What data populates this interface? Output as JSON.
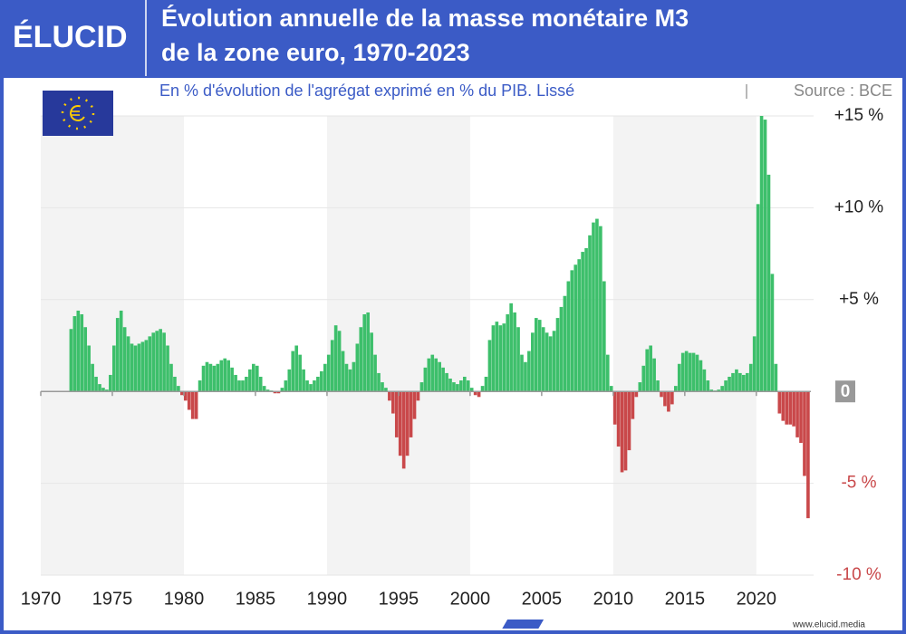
{
  "chart_data": {
    "type": "bar",
    "brand": "ÉLUCID",
    "title": [
      "Évolution annuelle de la masse monétaire M3",
      "de la zone euro, 1970-2023"
    ],
    "subtitle": "En % d'évolution de l'agrégat exprimé en % du PIB. Lissé",
    "source": "Source : BCE",
    "footer": "www.elucid.media",
    "positive_color": "#3dbf6b",
    "negative_color": "#c9484a",
    "xlim": [
      1970,
      2024
    ],
    "xticks": [
      1970,
      1975,
      1980,
      1985,
      1990,
      1995,
      2000,
      2005,
      2010,
      2015,
      2020
    ],
    "ylim": [
      -10,
      15
    ],
    "yticks": [
      {
        "value": -10,
        "label": "-10 %"
      },
      {
        "value": -5,
        "label": "-5 %"
      },
      0,
      {
        "value": 5,
        "label": "+5 %"
      },
      {
        "value": 10,
        "label": "+10 %"
      },
      {
        "value": 15,
        "label": "+15 %"
      }
    ],
    "grid": true,
    "x": [
      1972,
      1972.25,
      1972.5,
      1972.75,
      1973,
      1973.25,
      1973.5,
      1973.75,
      1974,
      1974.25,
      1974.5,
      1974.75,
      1975,
      1975.25,
      1975.5,
      1975.75,
      1976,
      1976.25,
      1976.5,
      1976.75,
      1977,
      1977.25,
      1977.5,
      1977.75,
      1978,
      1978.25,
      1978.5,
      1978.75,
      1979,
      1979.25,
      1979.5,
      1979.75,
      1980,
      1980.25,
      1980.5,
      1980.75,
      1981,
      1981.25,
      1981.5,
      1981.75,
      1982,
      1982.25,
      1982.5,
      1982.75,
      1983,
      1983.25,
      1983.5,
      1983.75,
      1984,
      1984.25,
      1984.5,
      1984.75,
      1985,
      1985.25,
      1985.5,
      1985.75,
      1986,
      1986.25,
      1986.5,
      1986.75,
      1987,
      1987.25,
      1987.5,
      1987.75,
      1988,
      1988.25,
      1988.5,
      1988.75,
      1989,
      1989.25,
      1989.5,
      1989.75,
      1990,
      1990.25,
      1990.5,
      1990.75,
      1991,
      1991.25,
      1991.5,
      1991.75,
      1992,
      1992.25,
      1992.5,
      1992.75,
      1993,
      1993.25,
      1993.5,
      1993.75,
      1994,
      1994.25,
      1994.5,
      1994.75,
      1995,
      1995.25,
      1995.5,
      1995.75,
      1996,
      1996.25,
      1996.5,
      1996.75,
      1997,
      1997.25,
      1997.5,
      1997.75,
      1998,
      1998.25,
      1998.5,
      1998.75,
      1999,
      1999.25,
      1999.5,
      1999.75,
      2000,
      2000.25,
      2000.5,
      2000.75,
      2001,
      2001.25,
      2001.5,
      2001.75,
      2002,
      2002.25,
      2002.5,
      2002.75,
      2003,
      2003.25,
      2003.5,
      2003.75,
      2004,
      2004.25,
      2004.5,
      2004.75,
      2005,
      2005.25,
      2005.5,
      2005.75,
      2006,
      2006.25,
      2006.5,
      2006.75,
      2007,
      2007.25,
      2007.5,
      2007.75,
      2008,
      2008.25,
      2008.5,
      2008.75,
      2009,
      2009.25,
      2009.5,
      2009.75,
      2010,
      2010.25,
      2010.5,
      2010.75,
      2011,
      2011.25,
      2011.5,
      2011.75,
      2012,
      2012.25,
      2012.5,
      2012.75,
      2013,
      2013.25,
      2013.5,
      2013.75,
      2014,
      2014.25,
      2014.5,
      2014.75,
      2015,
      2015.25,
      2015.5,
      2015.75,
      2016,
      2016.25,
      2016.5,
      2016.75,
      2017,
      2017.25,
      2017.5,
      2017.75,
      2018,
      2018.25,
      2018.5,
      2018.75,
      2019,
      2019.25,
      2019.5,
      2019.75,
      2020,
      2020.25,
      2020.5,
      2020.75,
      2021,
      2021.25,
      2021.5,
      2021.75,
      2022,
      2022.25,
      2022.5,
      2022.75,
      2023,
      2023.25,
      2023.5
    ],
    "values": [
      3.4,
      4.1,
      4.4,
      4.2,
      3.5,
      2.5,
      1.5,
      0.8,
      0.4,
      0.2,
      0.1,
      0.9,
      2.5,
      4.0,
      4.4,
      3.5,
      3.0,
      2.6,
      2.5,
      2.6,
      2.7,
      2.8,
      3.0,
      3.2,
      3.3,
      3.4,
      3.2,
      2.5,
      1.5,
      0.8,
      0.3,
      -0.2,
      -0.5,
      -1.0,
      -1.5,
      -1.5,
      0.6,
      1.4,
      1.6,
      1.5,
      1.4,
      1.5,
      1.7,
      1.8,
      1.7,
      1.3,
      0.9,
      0.6,
      0.6,
      0.8,
      1.2,
      1.5,
      1.4,
      0.8,
      0.3,
      0.1,
      0.05,
      -0.1,
      -0.1,
      0.2,
      0.6,
      1.2,
      2.2,
      2.5,
      2.0,
      1.2,
      0.6,
      0.4,
      0.6,
      0.8,
      1.1,
      1.5,
      2.0,
      2.8,
      3.6,
      3.3,
      2.2,
      1.5,
      1.2,
      1.6,
      2.6,
      3.5,
      4.2,
      4.3,
      3.2,
      2.0,
      1.0,
      0.5,
      0.2,
      -0.5,
      -1.2,
      -2.5,
      -3.5,
      -4.2,
      -3.5,
      -2.5,
      -1.5,
      -0.5,
      0.5,
      1.3,
      1.8,
      2.0,
      1.8,
      1.6,
      1.3,
      1.0,
      0.7,
      0.5,
      0.4,
      0.6,
      0.8,
      0.6,
      0.2,
      -0.2,
      -0.3,
      0.3,
      0.8,
      2.8,
      3.6,
      3.8,
      3.6,
      3.7,
      4.2,
      4.8,
      4.3,
      3.5,
      2.0,
      1.6,
      2.2,
      3.2,
      4.0,
      3.9,
      3.5,
      3.2,
      3.0,
      3.3,
      4.0,
      4.6,
      5.2,
      6.0,
      6.6,
      6.9,
      7.2,
      7.6,
      7.8,
      8.5,
      9.2,
      9.4,
      9.0,
      6.0,
      2.0,
      0.3,
      -1.8,
      -3.0,
      -4.4,
      -4.3,
      -3.2,
      -1.5,
      -0.3,
      0.5,
      1.4,
      2.3,
      2.5,
      1.8,
      0.6,
      -0.3,
      -0.8,
      -1.1,
      -0.7,
      0.3,
      1.5,
      2.1,
      2.2,
      2.1,
      2.1,
      2.0,
      1.7,
      1.2,
      0.6,
      0.1,
      0.05,
      0.1,
      0.3,
      0.6,
      0.8,
      1.0,
      1.2,
      1.0,
      0.9,
      1.0,
      1.5,
      3.0,
      10.2,
      15,
      14.8,
      11.8,
      6.4,
      1.5,
      -1.2,
      -1.6,
      -1.8,
      -1.8,
      -1.9,
      -2.5,
      -2.8,
      -4.6,
      -6.9
    ]
  }
}
